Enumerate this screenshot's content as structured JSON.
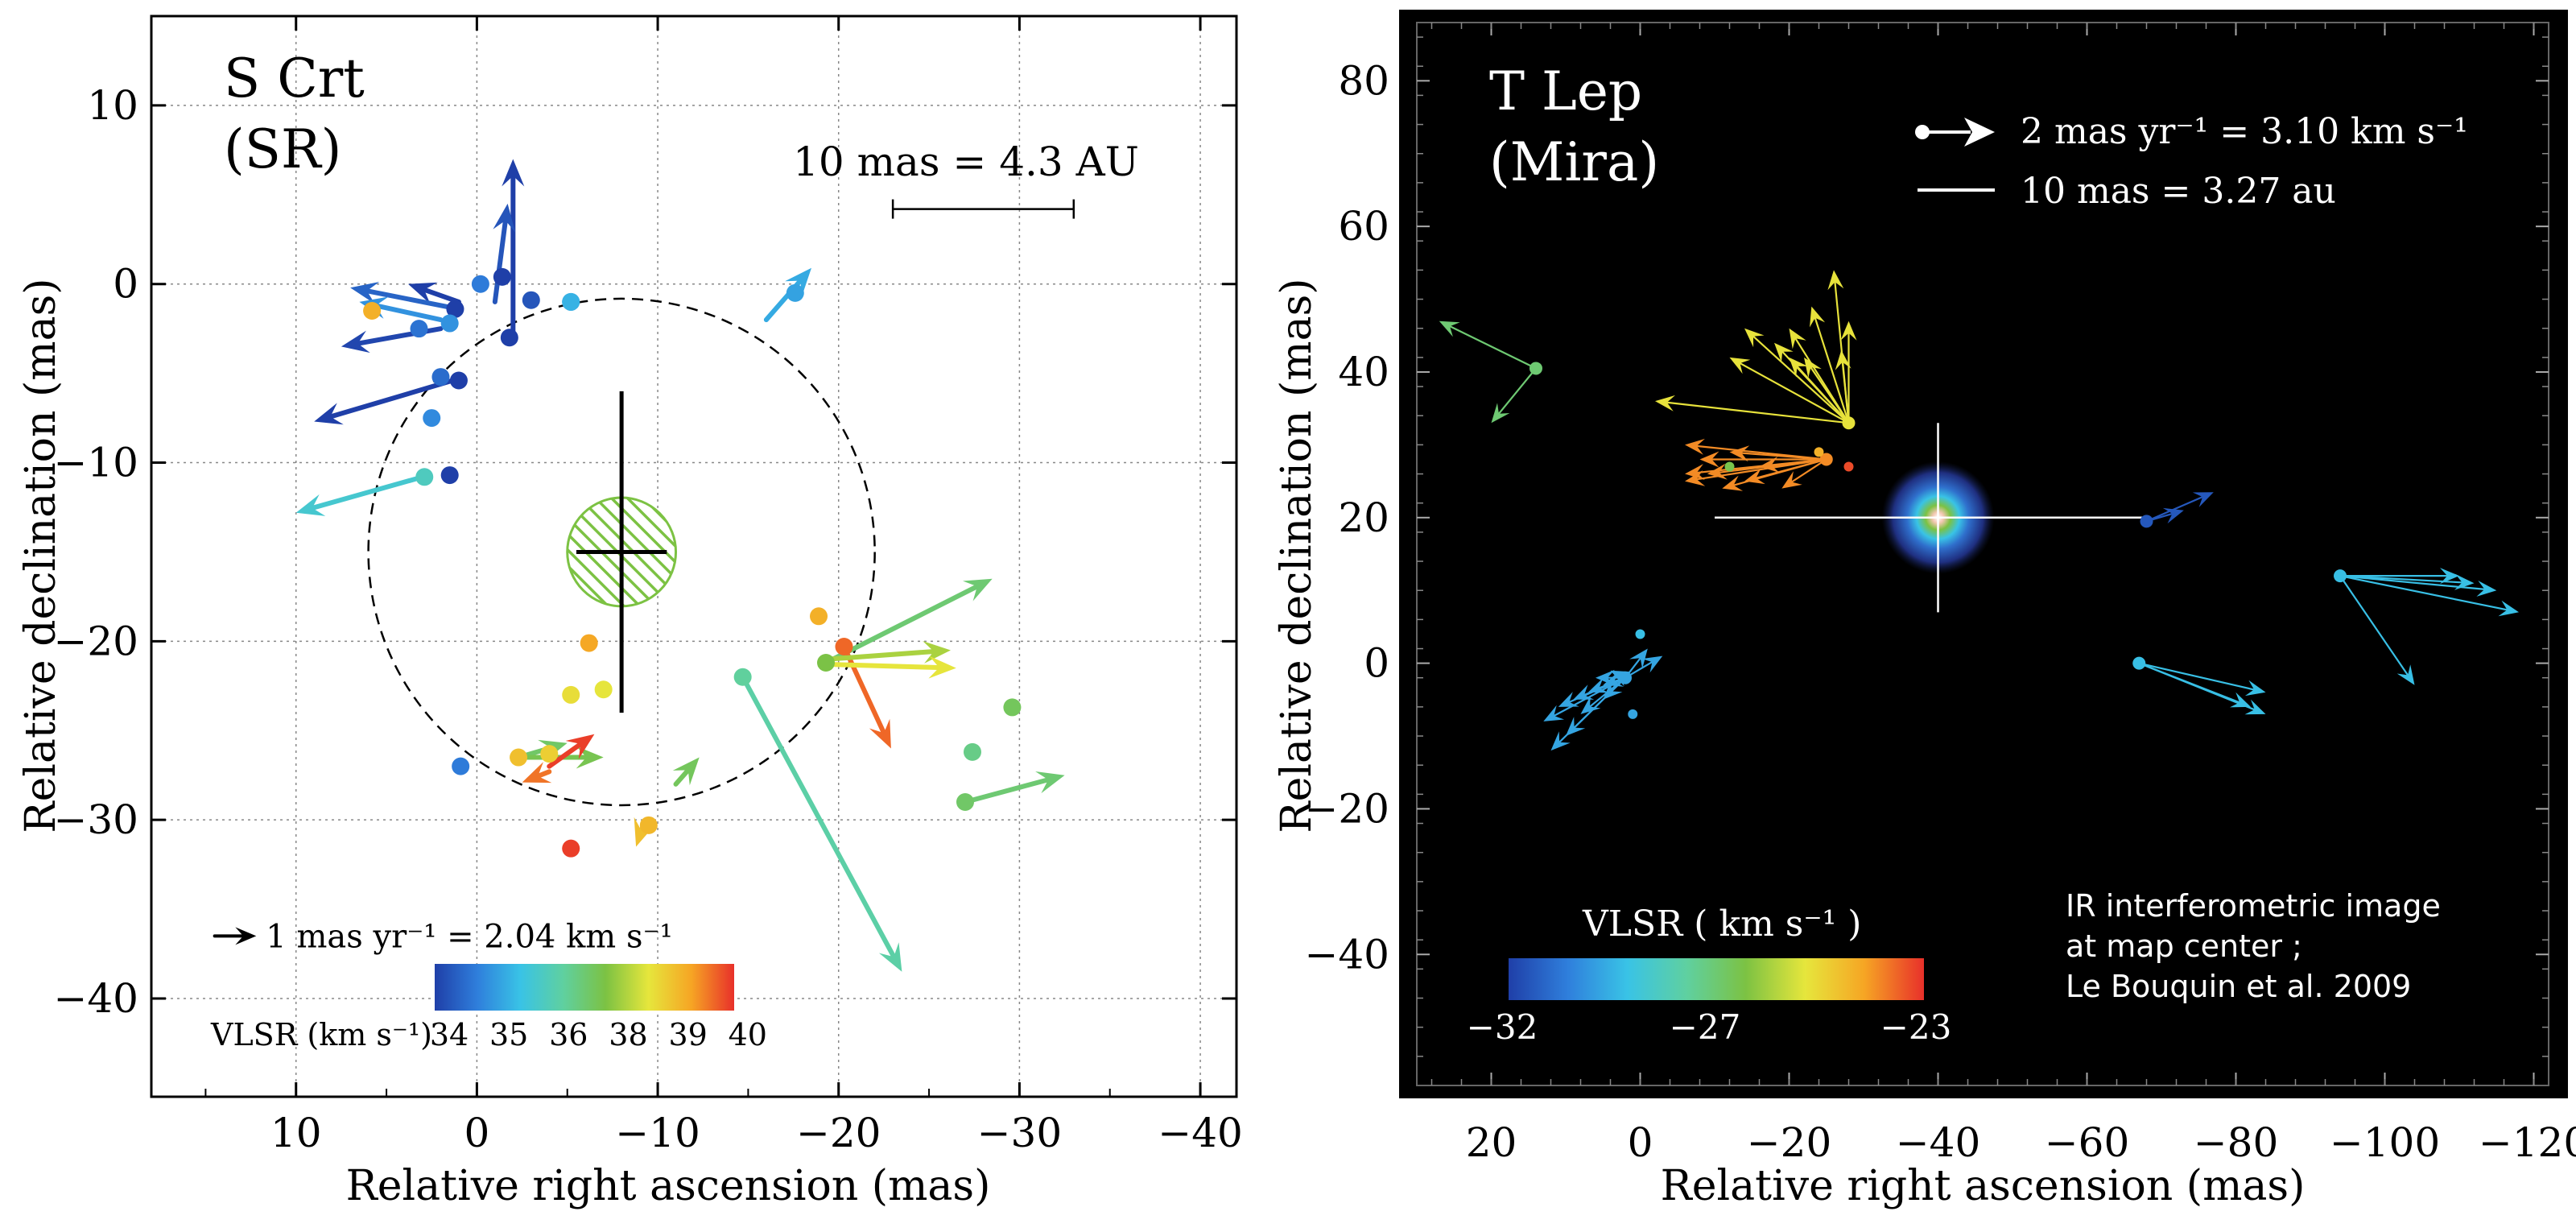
{
  "colorbar_stops": [
    "#1f3fa8",
    "#2f7fdc",
    "#39c3e6",
    "#5fd0a0",
    "#7cc243",
    "#e6e63c",
    "#f6a524",
    "#e8302a"
  ],
  "chart_data": [
    {
      "type": "scatter",
      "title_line1": "S Crt",
      "title_line2": "(SR)",
      "xlabel": "Relative right ascension  (mas)",
      "ylabel": "Relative declination  (mas)",
      "xlim": [
        18,
        -42
      ],
      "ylim": [
        -45.5,
        15
      ],
      "xticks": [
        10,
        0,
        -10,
        -20,
        -30,
        -40
      ],
      "xtick_labels": [
        "10",
        "0",
        "−10",
        "−20",
        "−30",
        "−40"
      ],
      "yticks": [
        10,
        0,
        -10,
        -20,
        -30,
        -40
      ],
      "ytick_labels": [
        "10",
        "0",
        "−10",
        "−20",
        "−30",
        "−40"
      ],
      "grid": true,
      "scale_bar": {
        "label": "10 mas = 4.3 AU",
        "x1": -23,
        "x2": -33,
        "y": 4.2
      },
      "vel_key": {
        "label": "1 mas yr⁻¹ = 2.04 km s⁻¹",
        "x": 14.5,
        "y": -36.5,
        "len": 2.3
      },
      "colorbar": {
        "label": "VLSR (km s⁻¹)",
        "ticks": [
          "34",
          "35",
          "36",
          "38",
          "39",
          "40"
        ],
        "vmin": 34,
        "vmax": 40
      },
      "circle": {
        "cx": -8,
        "cy": -15,
        "r": 14
      },
      "star": {
        "x": -8,
        "y": -15,
        "r": 3,
        "cross_half_x": 2.5,
        "cross_top": -6,
        "cross_bottom": -24
      },
      "spots": [
        {
          "x": 5.8,
          "y": -1.5,
          "v": 39.0
        },
        {
          "x": 3.2,
          "y": -2.5,
          "v": 34.7
        },
        {
          "x": 1.2,
          "y": -1.4,
          "v": 34.0
        },
        {
          "x": -0.2,
          "y": 0.0,
          "v": 34.8
        },
        {
          "x": -1.4,
          "y": 0.4,
          "v": 34.0
        },
        {
          "x": -3.0,
          "y": -0.9,
          "v": 34.3
        },
        {
          "x": -5.2,
          "y": -1.0,
          "v": 35.2
        },
        {
          "x": 1.5,
          "y": -2.2,
          "v": 35.1
        },
        {
          "x": -1.8,
          "y": -3.0,
          "v": 34.0
        },
        {
          "x": 2.0,
          "y": -5.2,
          "v": 34.6
        },
        {
          "x": 1.0,
          "y": -5.4,
          "v": 34.0
        },
        {
          "x": 2.5,
          "y": -7.5,
          "v": 35.0
        },
        {
          "x": 2.9,
          "y": -10.8,
          "v": 36.2
        },
        {
          "x": 1.5,
          "y": -10.7,
          "v": 34.0
        },
        {
          "x": 0.9,
          "y": -27.0,
          "v": 34.8
        },
        {
          "x": -6.2,
          "y": -20.1,
          "v": 39.1
        },
        {
          "x": -5.2,
          "y": -23.0,
          "v": 38.4
        },
        {
          "x": -7.0,
          "y": -22.7,
          "v": 38.3
        },
        {
          "x": -5.2,
          "y": -31.6,
          "v": 39.9
        },
        {
          "x": -4.0,
          "y": -26.3,
          "v": 38.6
        },
        {
          "x": -2.3,
          "y": -26.5,
          "v": 38.8
        },
        {
          "x": -9.5,
          "y": -30.3,
          "v": 38.9
        },
        {
          "x": -14.7,
          "y": -22.0,
          "v": 36.6
        },
        {
          "x": -18.9,
          "y": -18.6,
          "v": 39.0
        },
        {
          "x": -19.3,
          "y": -21.2,
          "v": 37.4
        },
        {
          "x": -20.3,
          "y": -20.3,
          "v": 39.6
        },
        {
          "x": -27.4,
          "y": -26.2,
          "v": 36.8
        },
        {
          "x": -29.6,
          "y": -23.7,
          "v": 37.2
        },
        {
          "x": -27.0,
          "y": -29.0,
          "v": 37.1
        },
        {
          "x": -5.2,
          "y": -1.0,
          "v": 35.5
        },
        {
          "x": -17.6,
          "y": -0.5,
          "v": 35.3
        }
      ],
      "vectors": [
        {
          "x1": -2.0,
          "y1": -2.8,
          "x2": -2.0,
          "y2": 7.0,
          "v": 34.0
        },
        {
          "x1": -1.0,
          "y1": -1.0,
          "x2": -1.7,
          "y2": 4.5,
          "v": 34.3
        },
        {
          "x1": 1.0,
          "y1": -1.0,
          "x2": 3.8,
          "y2": 0.0,
          "v": 34.0
        },
        {
          "x1": 1.0,
          "y1": -1.4,
          "x2": 7.0,
          "y2": -0.2,
          "v": 34.5
        },
        {
          "x1": 2.0,
          "y1": -2.0,
          "x2": 6.5,
          "y2": -1.0,
          "v": 35.1
        },
        {
          "x1": 2.0,
          "y1": -2.5,
          "x2": 7.5,
          "y2": -3.5,
          "v": 34.1
        },
        {
          "x1": 1.0,
          "y1": -5.3,
          "x2": 9.0,
          "y2": -7.7,
          "v": 34.0
        },
        {
          "x1": 3.0,
          "y1": -10.8,
          "x2": 10.0,
          "y2": -12.8,
          "v": 36.0
        },
        {
          "x1": -16.0,
          "y1": -2.0,
          "x2": -18.5,
          "y2": 0.9,
          "v": 35.4
        },
        {
          "x1": -14.7,
          "y1": -22.0,
          "x2": -23.5,
          "y2": -38.5,
          "v": 36.5
        },
        {
          "x1": -20.3,
          "y1": -20.3,
          "x2": -22.9,
          "y2": -26.0,
          "v": 39.6
        },
        {
          "x1": -19.3,
          "y1": -21.2,
          "x2": -28.5,
          "y2": -16.5,
          "v": 37.0
        },
        {
          "x1": -19.5,
          "y1": -21.0,
          "x2": -26.2,
          "y2": -20.5,
          "v": 37.8
        },
        {
          "x1": -19.8,
          "y1": -21.3,
          "x2": -26.5,
          "y2": -21.5,
          "v": 38.3
        },
        {
          "x1": -27.0,
          "y1": -29.0,
          "x2": -32.5,
          "y2": -27.5,
          "v": 37.0
        },
        {
          "x1": -2.3,
          "y1": -26.5,
          "x2": -5.0,
          "y2": -25.7,
          "v": 37.1
        },
        {
          "x1": -2.3,
          "y1": -26.5,
          "x2": -7.0,
          "y2": -26.5,
          "v": 37.3
        },
        {
          "x1": -11.0,
          "y1": -28.0,
          "x2": -12.3,
          "y2": -26.5,
          "v": 37.2
        },
        {
          "x1": -4.0,
          "y1": -27.0,
          "x2": -6.5,
          "y2": -25.2,
          "v": 39.9
        },
        {
          "x1": -4.0,
          "y1": -27.3,
          "x2": -2.5,
          "y2": -27.9,
          "v": 39.5
        },
        {
          "x1": -9.2,
          "y1": -30.3,
          "x2": -8.8,
          "y2": -31.5,
          "v": 38.8
        }
      ]
    },
    {
      "type": "scatter",
      "title_line1": "T Lep",
      "title_line2": "(Mira)",
      "xlabel": "Relative right ascension  (mas)",
      "ylabel": "Relative declination  (mas)",
      "xlim": [
        30,
        -122
      ],
      "ylim": [
        -58,
        88
      ],
      "xticks": [
        20,
        0,
        -20,
        -40,
        -60,
        -80,
        -100,
        -120
      ],
      "xtick_labels": [
        "20",
        "0",
        "−20",
        "−40",
        "−60",
        "−80",
        "−100",
        "−120"
      ],
      "yticks": [
        80,
        60,
        40,
        20,
        0,
        -20,
        -40
      ],
      "ytick_labels": [
        "80",
        "60",
        "40",
        "20",
        "0",
        "−20",
        "−40"
      ],
      "key_velocity": "2 mas yr⁻¹ = 3.10 km s⁻¹",
      "key_scale": "10 mas = 3.27 au",
      "colorbar": {
        "label": "VLSR ( km s⁻¹ )",
        "ticks": [
          "−32",
          "−27",
          "−23"
        ],
        "vmin": -32,
        "vmax": -23
      },
      "note": [
        "IR interferometric image",
        "at map center ;",
        "Le Bouquin et al. 2009"
      ],
      "star": {
        "x": -40,
        "y": 20,
        "cross_left": -10,
        "cross_right": -68,
        "cross_top": 33,
        "cross_bottom": 7
      },
      "groups": [
        {
          "x": 14,
          "y": 40.5,
          "v": -27.5,
          "ends": [
            [
              27,
              47
            ],
            [
              20,
              33
            ]
          ]
        },
        {
          "x": -28,
          "y": 33,
          "v": -25.5,
          "ends": [
            [
              -26,
              54
            ],
            [
              -23,
              49
            ],
            [
              -20,
              46
            ],
            [
              -18,
              44
            ],
            [
              -22,
              42
            ],
            [
              -28,
              47
            ],
            [
              -27,
              43
            ],
            [
              -20,
              42
            ],
            [
              -14,
              46
            ],
            [
              -12,
              42
            ],
            [
              -2,
              36
            ]
          ]
        },
        {
          "x": -25,
          "y": 28,
          "v": -24.0,
          "ends": [
            [
              -6,
              30
            ],
            [
              -8,
              28
            ],
            [
              -9,
              26
            ],
            [
              -12,
              29
            ],
            [
              -6,
              25
            ],
            [
              -16,
              27
            ],
            [
              -14,
              25
            ],
            [
              -19,
              24
            ],
            [
              -11,
              24
            ],
            [
              -6,
              26
            ]
          ]
        },
        {
          "x": -68,
          "y": 19.5,
          "v": -31.5,
          "ends": [
            [
              -73,
              21
            ],
            [
              -77,
              23.5
            ]
          ]
        },
        {
          "x": -94,
          "y": 12,
          "v": -29.5,
          "ends": [
            [
              -110,
              12
            ],
            [
              -115,
              10
            ],
            [
              -118,
              7
            ],
            [
              -112,
              11
            ],
            [
              -104,
              -3
            ]
          ]
        },
        {
          "x": -67,
          "y": 0,
          "v": -29.5,
          "ends": [
            [
              -84,
              -4
            ],
            [
              -82,
              -6
            ],
            [
              -84,
              -7
            ]
          ]
        },
        {
          "x": 2,
          "y": -2,
          "v": -30.0,
          "ends": [
            [
              13,
              -8
            ],
            [
              11,
              -6
            ],
            [
              9,
              -5
            ],
            [
              7,
              -4
            ],
            [
              5,
              -3
            ],
            [
              4,
              -1
            ],
            [
              6,
              -2
            ],
            [
              8,
              -7
            ],
            [
              10,
              -10
            ],
            [
              12,
              -12
            ],
            [
              -1,
              2
            ],
            [
              -3,
              1
            ],
            [
              5,
              -5
            ]
          ]
        }
      ],
      "extra_spots": [
        {
          "x": 0,
          "y": 4,
          "v": -29.5
        },
        {
          "x": 1,
          "y": -7,
          "v": -30.0
        },
        {
          "x": -12,
          "y": 27,
          "v": -27.0
        },
        {
          "x": -24,
          "y": 29,
          "v": -24.5
        },
        {
          "x": -28,
          "y": 27,
          "v": -23.3
        }
      ]
    }
  ]
}
